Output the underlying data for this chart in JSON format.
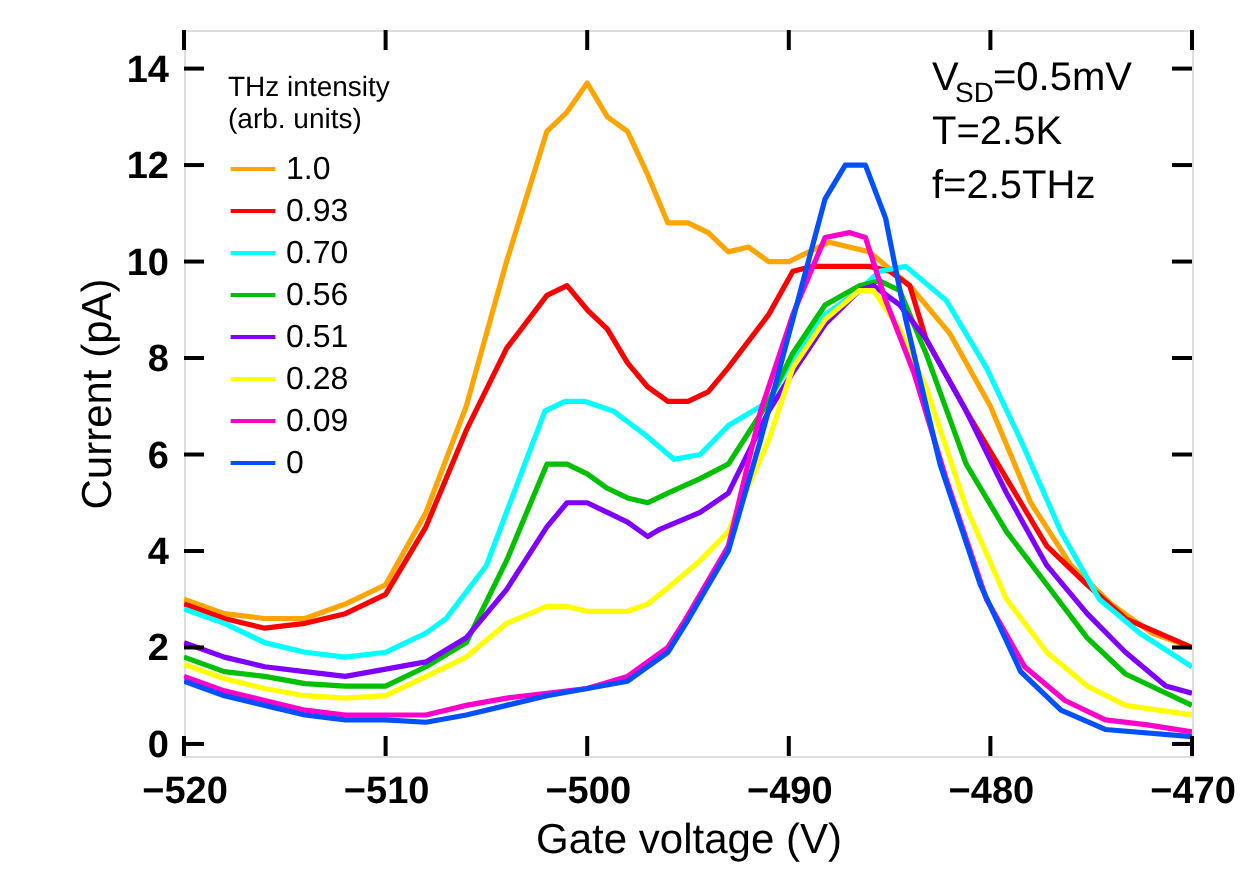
{
  "chart_data": {
    "type": "line",
    "xlabel": "Gate voltage (V)",
    "ylabel": "Current (pA)",
    "legend_title": "THz intensity\n(arb. units)",
    "legend": "top left",
    "grid": false,
    "marker": "none",
    "line_style": "solid",
    "xlim": [
      -520,
      -470
    ],
    "xticks": [
      -520,
      -510,
      -500,
      -490,
      -480,
      -470
    ],
    "ylim": [
      -0.25,
      14.8
    ],
    "yticks": [
      0,
      2,
      4,
      6,
      8,
      10,
      12,
      14
    ],
    "annotations": [
      "V$_{SD}$=0.5mV",
      "T=2.5K",
      "f=2.5THz"
    ],
    "series": [
      {
        "name": "1.0",
        "color": "#ffa500",
        "x": [
          -520,
          -518,
          -516,
          -514,
          -512,
          -510,
          -508,
          -506,
          -504,
          -502,
          -501,
          -500,
          -499,
          -498,
          -497,
          -496,
          -495,
          -494,
          -493,
          -492,
          -491,
          -490,
          -489,
          -488,
          -487,
          -486,
          -484,
          -482,
          -480,
          -478,
          -476,
          -474,
          -472,
          -470
        ],
        "values": [
          3.0,
          2.7,
          2.6,
          2.6,
          2.9,
          3.3,
          4.8,
          7.0,
          10.0,
          12.7,
          13.1,
          13.7,
          13.0,
          12.7,
          11.8,
          10.8,
          10.8,
          10.6,
          10.2,
          10.3,
          10.0,
          10.0,
          10.2,
          10.4,
          10.3,
          10.2,
          9.5,
          8.5,
          7.0,
          5.0,
          3.7,
          2.9,
          2.3,
          2.0
        ]
      },
      {
        "name": "0.93",
        "color": "#ff0000",
        "x": [
          -520,
          -518,
          -516,
          -514,
          -512,
          -510,
          -508,
          -506,
          -504,
          -502,
          -501,
          -500,
          -499,
          -498,
          -497,
          -496,
          -495,
          -494,
          -493,
          -491,
          -489.8,
          -488.8,
          -486,
          -485,
          -484,
          -483.2,
          -481.2,
          -479.2,
          -477.2,
          -475.2,
          -473.3,
          -470
        ],
        "values": [
          2.9,
          2.6,
          2.4,
          2.5,
          2.7,
          3.1,
          4.5,
          6.5,
          8.2,
          9.3,
          9.5,
          9.0,
          8.6,
          7.9,
          7.4,
          7.1,
          7.1,
          7.3,
          7.8,
          8.9,
          9.8,
          9.9,
          9.9,
          9.8,
          9.5,
          8.4,
          6.9,
          5.5,
          4.1,
          3.3,
          2.6,
          2.0
        ]
      },
      {
        "name": "0.70",
        "color": "#00ffff",
        "x": [
          -520,
          -518,
          -516,
          -514,
          -512,
          -510,
          -508,
          -507,
          -505,
          -503.1,
          -502.1,
          -501.1,
          -500.1,
          -498.7,
          -497.1,
          -495.7,
          -494.4,
          -493,
          -491,
          -489.8,
          -488.2,
          -486.5,
          -485.5,
          -484.2,
          -482.2,
          -480.2,
          -478.5,
          -476.5,
          -474.6,
          -472.6,
          -470
        ],
        "values": [
          2.8,
          2.5,
          2.1,
          1.9,
          1.8,
          1.9,
          2.3,
          2.6,
          3.7,
          5.8,
          6.9,
          7.1,
          7.1,
          6.9,
          6.4,
          5.9,
          6.0,
          6.6,
          7.1,
          8.0,
          8.9,
          9.4,
          9.8,
          9.9,
          9.2,
          7.8,
          6.3,
          4.4,
          3.0,
          2.3,
          1.6
        ]
      },
      {
        "name": "0.56",
        "color": "#00c000",
        "x": [
          -520,
          -518,
          -516,
          -514,
          -512,
          -510,
          -508,
          -506,
          -504,
          -502,
          -501,
          -500,
          -499,
          -498,
          -497,
          -496,
          -494.4,
          -493,
          -491,
          -489.8,
          -488.2,
          -486.5,
          -485.5,
          -484.5,
          -483.2,
          -481.2,
          -479.2,
          -477.2,
          -475.2,
          -473.3,
          -470
        ],
        "values": [
          1.8,
          1.5,
          1.4,
          1.25,
          1.2,
          1.2,
          1.6,
          2.1,
          3.8,
          5.8,
          5.8,
          5.6,
          5.3,
          5.1,
          5.0,
          5.2,
          5.5,
          5.8,
          7.1,
          8.1,
          9.1,
          9.5,
          9.6,
          9.4,
          8.1,
          5.8,
          4.4,
          3.3,
          2.2,
          1.45,
          0.8
        ]
      },
      {
        "name": "0.51",
        "color": "#8000ff",
        "x": [
          -520,
          -518,
          -516,
          -514,
          -512,
          -510,
          -508,
          -506,
          -504,
          -502,
          -501,
          -500,
          -499,
          -498,
          -497,
          -496.4,
          -494.4,
          -493,
          -491,
          -489.8,
          -488.2,
          -486.5,
          -485.8,
          -484.5,
          -483.2,
          -481.2,
          -479.2,
          -477.2,
          -475.2,
          -473.3,
          -471.3,
          -470
        ],
        "values": [
          2.1,
          1.8,
          1.6,
          1.5,
          1.4,
          1.55,
          1.7,
          2.2,
          3.2,
          4.5,
          5.0,
          5.0,
          4.8,
          4.6,
          4.3,
          4.45,
          4.8,
          5.2,
          6.9,
          7.7,
          8.7,
          9.4,
          9.5,
          9.1,
          8.4,
          6.9,
          5.2,
          3.7,
          2.7,
          1.9,
          1.2,
          1.05
        ]
      },
      {
        "name": "0.28",
        "color": "#ffff00",
        "x": [
          -520,
          -518,
          -516,
          -514,
          -512,
          -510,
          -508,
          -506,
          -504,
          -502,
          -501,
          -500,
          -499,
          -498,
          -497,
          -496.4,
          -494.4,
          -493,
          -491,
          -489.8,
          -488.2,
          -486.5,
          -485.8,
          -484.5,
          -483.2,
          -481.2,
          -479.2,
          -477.2,
          -475.2,
          -473.3,
          -470
        ],
        "values": [
          1.65,
          1.35,
          1.15,
          1.0,
          0.95,
          1.0,
          1.4,
          1.8,
          2.5,
          2.85,
          2.85,
          2.75,
          2.75,
          2.75,
          2.9,
          3.1,
          3.8,
          4.4,
          6.3,
          7.8,
          8.8,
          9.4,
          9.4,
          8.6,
          7.4,
          4.9,
          3.0,
          1.9,
          1.2,
          0.8,
          0.6
        ]
      },
      {
        "name": "0.09",
        "color": "#ff00cc",
        "x": [
          -520,
          -518,
          -516,
          -514,
          -512,
          -510,
          -508,
          -506,
          -504,
          -502,
          -500,
          -498,
          -496,
          -495.1,
          -493,
          -491.4,
          -489.8,
          -488.2,
          -487,
          -486.2,
          -485.2,
          -483.8,
          -482.2,
          -480.2,
          -478.3,
          -476.3,
          -474.3,
          -472.3,
          -470
        ],
        "values": [
          1.4,
          1.1,
          0.9,
          0.7,
          0.6,
          0.6,
          0.6,
          0.8,
          0.95,
          1.05,
          1.15,
          1.4,
          2.0,
          2.6,
          4.1,
          6.9,
          8.9,
          10.5,
          10.6,
          10.5,
          9.2,
          7.7,
          5.5,
          3.0,
          1.6,
          0.9,
          0.5,
          0.4,
          0.25
        ]
      },
      {
        "name": "0",
        "color": "#0050ff",
        "x": [
          -520,
          -518,
          -516,
          -514,
          -512,
          -510,
          -508,
          -506,
          -504,
          -502,
          -500,
          -498,
          -496,
          -495.1,
          -493,
          -491.4,
          -489.8,
          -488.2,
          -487.2,
          -486.2,
          -485.2,
          -484.2,
          -482.5,
          -480.5,
          -478.5,
          -476.5,
          -474.3,
          -470
        ],
        "values": [
          1.3,
          1.0,
          0.8,
          0.6,
          0.5,
          0.5,
          0.45,
          0.6,
          0.8,
          1.0,
          1.15,
          1.3,
          1.9,
          2.5,
          4.0,
          6.3,
          8.8,
          11.3,
          12.0,
          12.0,
          10.9,
          8.8,
          5.8,
          3.3,
          1.5,
          0.7,
          0.3,
          0.15
        ]
      }
    ]
  }
}
